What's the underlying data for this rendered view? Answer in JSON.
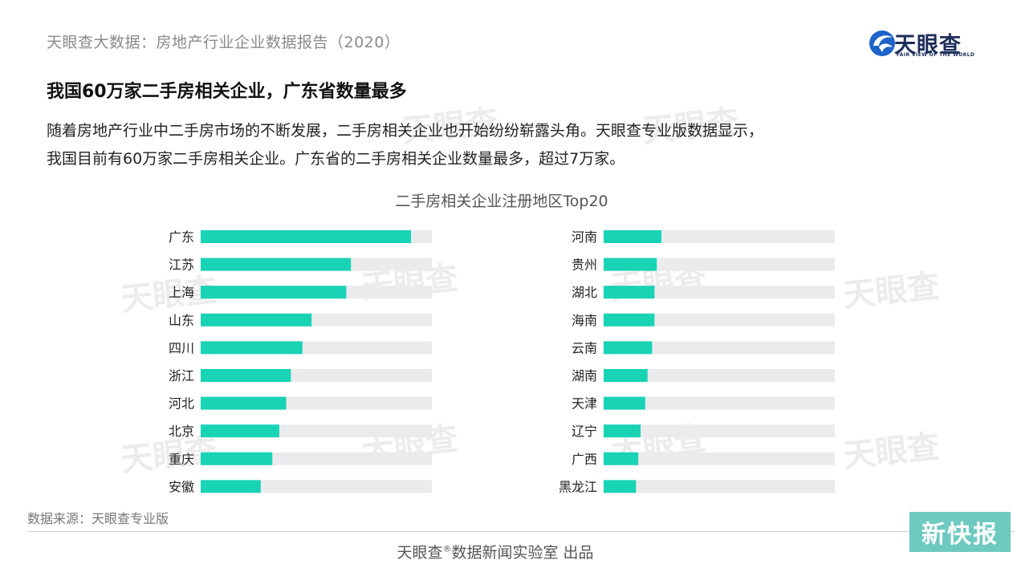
{
  "header": {
    "report_title": "天眼查大数据：房地产行业企业数据报告（2020）",
    "logo_name": "天眼查",
    "logo_subtitle": "FAIR VIEW OF THE WORLD"
  },
  "headline": "我国60万家二手房相关企业，广东省数量最多",
  "body": {
    "line1": "随着房地产行业中二手房市场的不断发展，二手房相关企业也开始纷纷崭露头角。天眼查专业版数据显示，",
    "line2": "我国目前有60万家二手房相关企业。广东省的二手房相关企业数量最多，超过7万家。"
  },
  "watermark_text": "天眼查",
  "chart_data": [
    {
      "type": "bar",
      "orientation": "horizontal",
      "title": "二手房相关企业注册地区Top20",
      "categories": [
        "广东",
        "江苏",
        "上海",
        "山东",
        "四川",
        "浙江",
        "河北",
        "北京",
        "重庆",
        "安徽"
      ],
      "values": [
        91,
        65,
        63,
        48,
        44,
        39,
        37,
        34,
        31,
        26
      ],
      "xlim": [
        0,
        100
      ],
      "bar_color": "#19d3b5",
      "track_color": "#ebebee",
      "grid": false
    },
    {
      "type": "bar",
      "orientation": "horizontal",
      "categories": [
        "河南",
        "贵州",
        "湖北",
        "海南",
        "云南",
        "湖南",
        "天津",
        "辽宁",
        "广西",
        "黑龙江"
      ],
      "values": [
        25,
        23,
        22,
        22,
        21,
        19,
        18,
        16,
        15,
        14
      ],
      "xlim": [
        0,
        100
      ],
      "bar_color": "#19d3b5",
      "track_color": "#ebebee",
      "grid": false
    }
  ],
  "source": "数据来源：天眼查专业版",
  "footer": {
    "brand": "天眼查",
    "mark": "®",
    "text": "数据新闻实验室 出品"
  },
  "badge": "新快报",
  "colors": {
    "accent": "#19d3b5",
    "logo_blue": "#1d63c9",
    "badge_bg": "#6ec9c1"
  }
}
